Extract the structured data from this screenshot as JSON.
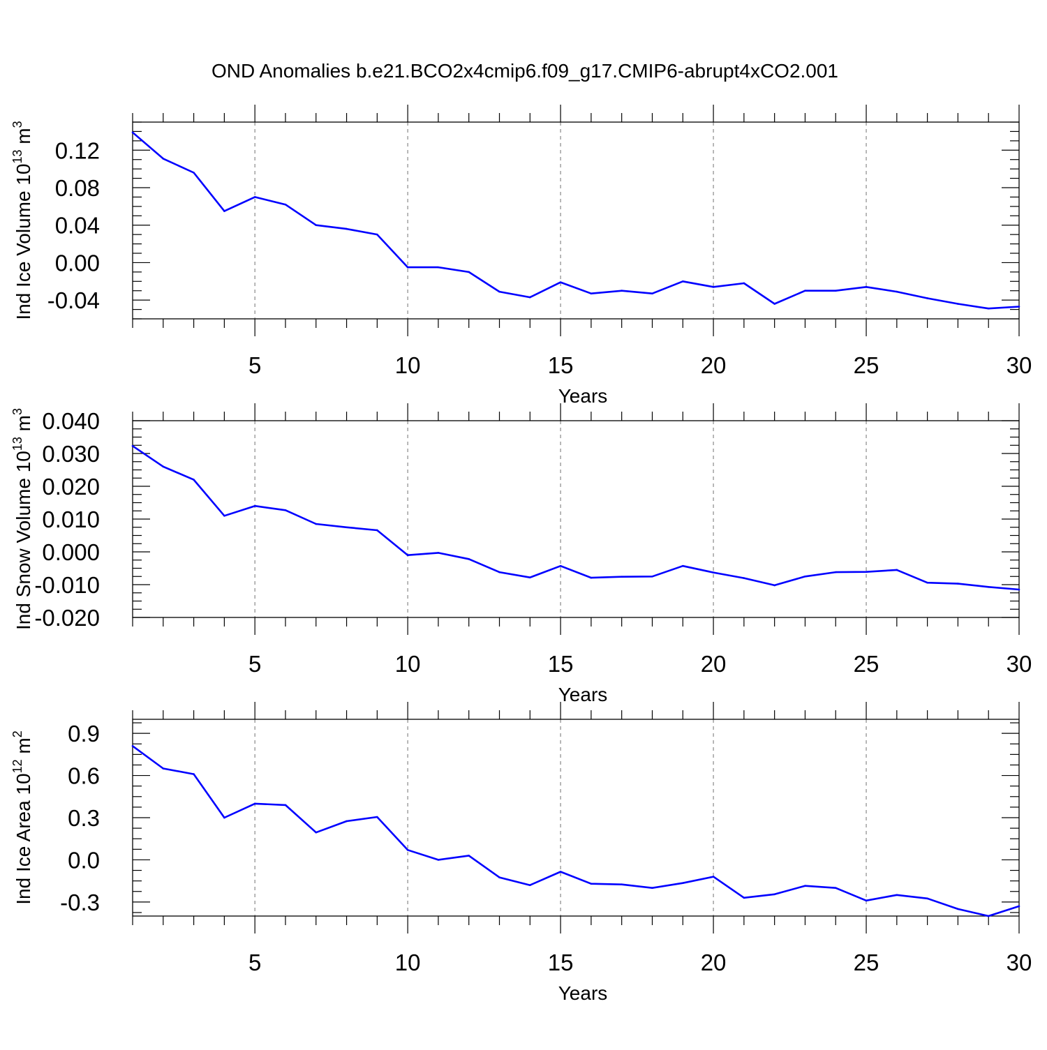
{
  "title": "OND Anomalies b.e21.BCO2x4cmip6.f09_g17.CMIP6-abrupt4xCO2.001",
  "colors": {
    "line": "#0000ff",
    "grid": "#888888",
    "axis": "#000000"
  },
  "chart_data": [
    {
      "type": "line",
      "xlabel": "Years",
      "ylabel": {
        "text": "Ind Ice Volume 10",
        "sup": "13",
        "unit": " m",
        "unit_sup": "3"
      },
      "xlim": [
        1,
        30
      ],
      "ylim": [
        -0.06,
        0.15
      ],
      "xticks": [
        5,
        10,
        15,
        20,
        25,
        30
      ],
      "xtick_labels": [
        "5",
        "10",
        "15",
        "20",
        "25",
        "30"
      ],
      "yticks": [
        -0.04,
        0.0,
        0.04,
        0.08,
        0.12
      ],
      "ytick_labels": [
        "-0.04",
        "0.00",
        "0.04",
        "0.08",
        "0.12"
      ],
      "x": [
        1,
        2,
        3,
        4,
        5,
        6,
        7,
        8,
        9,
        10,
        11,
        12,
        13,
        14,
        15,
        16,
        17,
        18,
        19,
        20,
        21,
        22,
        23,
        24,
        25,
        26,
        27,
        28,
        29,
        30
      ],
      "values": [
        0.139,
        0.111,
        0.096,
        0.055,
        0.07,
        0.062,
        0.04,
        0.036,
        0.03,
        -0.005,
        -0.005,
        -0.01,
        -0.031,
        -0.037,
        -0.021,
        -0.033,
        -0.03,
        -0.033,
        -0.02,
        -0.026,
        -0.022,
        -0.044,
        -0.03,
        -0.03,
        -0.026,
        -0.031,
        -0.038,
        -0.044,
        -0.049,
        -0.047
      ],
      "grid_x": [
        5,
        10,
        15,
        20,
        25
      ]
    },
    {
      "type": "line",
      "xlabel": "Years",
      "ylabel": {
        "text": "Ind Snow Volume 10",
        "sup": "13",
        "unit": " m",
        "unit_sup": "3"
      },
      "xlim": [
        1,
        30
      ],
      "ylim": [
        -0.02,
        0.04
      ],
      "xticks": [
        5,
        10,
        15,
        20,
        25,
        30
      ],
      "xtick_labels": [
        "5",
        "10",
        "15",
        "20",
        "25",
        "30"
      ],
      "yticks": [
        -0.02,
        -0.01,
        0.0,
        0.01,
        0.02,
        0.03,
        0.04
      ],
      "ytick_labels": [
        "-0.020",
        "-0.010",
        "0.000",
        "0.010",
        "0.020",
        "0.030",
        "0.040"
      ],
      "x": [
        1,
        2,
        3,
        4,
        5,
        6,
        7,
        8,
        9,
        10,
        11,
        12,
        13,
        14,
        15,
        16,
        17,
        18,
        19,
        20,
        21,
        22,
        23,
        24,
        25,
        26,
        27,
        28,
        29,
        30
      ],
      "values": [
        0.0323,
        0.026,
        0.022,
        0.011,
        0.014,
        0.0127,
        0.0085,
        0.0075,
        0.0066,
        -0.001,
        -0.0003,
        -0.0022,
        -0.0062,
        -0.0078,
        -0.0043,
        -0.0079,
        -0.0076,
        -0.0075,
        -0.0043,
        -0.0063,
        -0.008,
        -0.0102,
        -0.0075,
        -0.0062,
        -0.0061,
        -0.0055,
        -0.0094,
        -0.0097,
        -0.0107,
        -0.0115
      ],
      "grid_x": [
        5,
        10,
        15,
        20,
        25
      ]
    },
    {
      "type": "line",
      "xlabel": "Years",
      "ylabel": {
        "text": "Ind Ice Area 10",
        "sup": "12",
        "unit": " m",
        "unit_sup": "2"
      },
      "xlim": [
        1,
        30
      ],
      "ylim": [
        -0.4,
        1.0
      ],
      "xticks": [
        5,
        10,
        15,
        20,
        25,
        30
      ],
      "xtick_labels": [
        "5",
        "10",
        "15",
        "20",
        "25",
        "30"
      ],
      "yticks": [
        -0.3,
        0.0,
        0.3,
        0.6,
        0.9
      ],
      "ytick_labels": [
        "-0.3",
        "0.0",
        "0.3",
        "0.6",
        "0.9"
      ],
      "x": [
        1,
        2,
        3,
        4,
        5,
        6,
        7,
        8,
        9,
        10,
        11,
        12,
        13,
        14,
        15,
        16,
        17,
        18,
        19,
        20,
        21,
        22,
        23,
        24,
        25,
        26,
        27,
        28,
        29,
        30
      ],
      "values": [
        0.81,
        0.65,
        0.61,
        0.3,
        0.4,
        0.39,
        0.195,
        0.275,
        0.305,
        0.07,
        0.0,
        0.03,
        -0.125,
        -0.18,
        -0.085,
        -0.17,
        -0.175,
        -0.2,
        -0.165,
        -0.12,
        -0.27,
        -0.245,
        -0.185,
        -0.2,
        -0.29,
        -0.25,
        -0.275,
        -0.35,
        -0.4,
        -0.33
      ],
      "grid_x": [
        5,
        10,
        15,
        20,
        25
      ]
    }
  ]
}
